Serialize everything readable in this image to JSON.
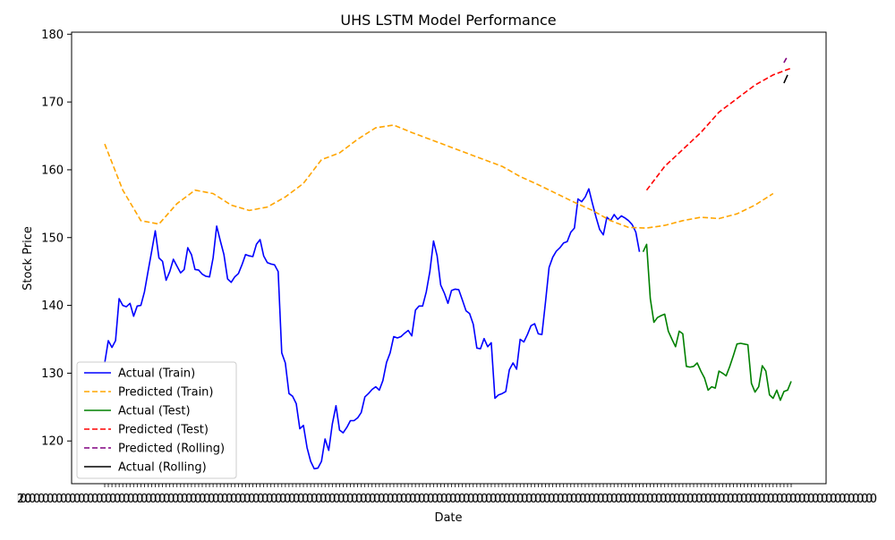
{
  "chart_data": {
    "type": "line",
    "title": "UHS LSTM Model Performance",
    "xlabel": "Date",
    "ylabel": "Stock Price",
    "ylim": [
      113.7,
      180.3
    ],
    "yticks": [
      120,
      130,
      140,
      150,
      160,
      170,
      180
    ],
    "x_tick_labels_note": "overlapping date strings rendered illegibly",
    "x_tick_labels_visible": [
      "20",
      "0"
    ],
    "x_index_range": [
      0,
      190
    ],
    "grid": false,
    "legend_position": "lower-left",
    "series": [
      {
        "name": "Actual (Train)",
        "color": "#0000ff",
        "style": "solid",
        "x": [
          0,
          1,
          2,
          3,
          4,
          5,
          6,
          7,
          8,
          9,
          10,
          11,
          12,
          13,
          14,
          15,
          16,
          17,
          18,
          19,
          20,
          21,
          22,
          23,
          24,
          25,
          26,
          27,
          28,
          29,
          30,
          31,
          32,
          33,
          34,
          35,
          36,
          37,
          38,
          39,
          40,
          41,
          42,
          43,
          44,
          45,
          46,
          47,
          48,
          49,
          50,
          51,
          52,
          53,
          54,
          55,
          56,
          57,
          58,
          59,
          60,
          61,
          62,
          63,
          64,
          65,
          66,
          67,
          68,
          69,
          70,
          71,
          72,
          73,
          74,
          75,
          76,
          77,
          78,
          79,
          80,
          81,
          82,
          83,
          84,
          85,
          86,
          87,
          88,
          89,
          90,
          91,
          92,
          93,
          94,
          95,
          96,
          97,
          98,
          99,
          100,
          101,
          102,
          103,
          104,
          105,
          106,
          107,
          108,
          109,
          110,
          111,
          112,
          113,
          114,
          115,
          116,
          117,
          118,
          119,
          120,
          121,
          122,
          123,
          124,
          125,
          126,
          127,
          128,
          129,
          130,
          131,
          132,
          133,
          134,
          135,
          136,
          137,
          138,
          139,
          140,
          141,
          142,
          143,
          144,
          145,
          146,
          147,
          148
        ],
        "values": [
          131.5,
          134.8,
          133.8,
          134.8,
          141.0,
          140.0,
          139.8,
          140.3,
          138.4,
          139.9,
          140.0,
          142.0,
          145.0,
          148.0,
          151.0,
          147.0,
          146.5,
          143.7,
          145.0,
          146.8,
          145.8,
          144.8,
          145.3,
          148.5,
          147.5,
          145.3,
          145.2,
          144.6,
          144.3,
          144.2,
          147.0,
          151.7,
          149.5,
          147.5,
          143.9,
          143.4,
          144.2,
          144.7,
          146.0,
          147.5,
          147.3,
          147.2,
          149.0,
          149.7,
          147.3,
          146.3,
          146.1,
          146.0,
          145.0,
          133.0,
          131.5,
          127.0,
          126.6,
          125.5,
          121.8,
          122.3,
          119.0,
          117.0,
          115.9,
          116.0,
          117.0,
          120.3,
          118.6,
          122.5,
          125.2,
          121.6,
          121.2,
          122.0,
          123.0,
          123.0,
          123.4,
          124.2,
          126.5,
          127.0,
          127.6,
          128.0,
          127.5,
          128.9,
          131.6,
          133.0,
          135.4,
          135.2,
          135.4,
          135.9,
          136.3,
          135.5,
          139.3,
          139.9,
          139.9,
          142.0,
          145.0,
          149.5,
          147.3,
          143.0,
          141.8,
          140.3,
          142.2,
          142.4,
          142.3,
          140.8,
          139.2,
          138.8,
          137.2,
          133.7,
          133.6,
          135.1,
          133.9,
          134.5,
          126.3,
          126.8,
          127.0,
          127.3,
          130.5,
          131.5,
          130.6,
          135.0,
          134.6,
          135.7,
          137.0,
          137.3,
          135.8,
          135.7,
          140.5,
          145.6,
          147.1,
          148.0,
          148.5,
          149.2,
          149.4,
          150.8,
          151.4,
          155.7,
          155.3,
          156.0,
          157.2,
          155.0,
          153.0,
          151.2,
          150.4,
          153.0,
          152.5,
          153.4,
          152.7,
          153.2,
          152.9,
          152.5,
          151.9,
          150.8,
          147.9
        ]
      },
      {
        "name": "Predicted (Train)",
        "color": "#ffa500",
        "style": "dashed",
        "x": [
          0,
          5,
          10,
          15,
          20,
          25,
          30,
          35,
          40,
          45,
          50,
          55,
          60,
          65,
          70,
          75,
          80,
          85,
          90,
          95,
          100,
          105,
          110,
          115,
          120,
          125,
          130,
          135,
          140,
          145,
          150,
          155,
          160,
          165,
          170,
          175,
          180,
          185
        ],
        "values": [
          163.8,
          157.0,
          152.5,
          152.0,
          155.0,
          157.0,
          156.5,
          154.8,
          154.0,
          154.5,
          156.0,
          158.0,
          161.5,
          162.5,
          164.5,
          166.2,
          166.6,
          165.5,
          164.5,
          163.5,
          162.5,
          161.5,
          160.5,
          159.0,
          157.8,
          156.5,
          155.2,
          154.0,
          152.5,
          151.5,
          151.4,
          151.8,
          152.5,
          153.0,
          152.8,
          153.5,
          154.8,
          156.5
        ]
      },
      {
        "name": "Actual (Test)",
        "color": "#008000",
        "style": "solid",
        "x": [
          149,
          150,
          151,
          152,
          153,
          154,
          155,
          156,
          157,
          158,
          159,
          160,
          161,
          162,
          163,
          164,
          165,
          166,
          167,
          168,
          169,
          170,
          171,
          172,
          173,
          174,
          175,
          176,
          177,
          178,
          179,
          180,
          181,
          182,
          183,
          184,
          185,
          186,
          187,
          188,
          189,
          190
        ],
        "values": [
          147.9,
          149.0,
          141.0,
          137.5,
          138.2,
          138.5,
          138.7,
          136.2,
          135.0,
          133.9,
          136.2,
          135.8,
          131.0,
          130.9,
          131.0,
          131.5,
          130.3,
          129.3,
          127.5,
          128.0,
          127.8,
          130.3,
          130.0,
          129.6,
          131.0,
          132.6,
          134.3,
          134.4,
          134.3,
          134.2,
          128.5,
          127.2,
          128.0,
          131.1,
          130.3,
          126.8,
          126.3,
          127.5,
          126.0,
          127.3,
          127.5,
          128.8
        ]
      },
      {
        "name": "Predicted (Test)",
        "color": "#ff0000",
        "style": "dashed",
        "x": [
          150,
          155,
          160,
          165,
          170,
          175,
          180,
          185,
          190
        ],
        "values": [
          157.0,
          160.5,
          163.0,
          165.5,
          168.5,
          170.5,
          172.5,
          174.0,
          175.0
        ]
      },
      {
        "name": "Predicted (Rolling)",
        "color": "#800080",
        "style": "dashed",
        "x": [
          188,
          189
        ],
        "values": [
          175.8,
          176.8
        ]
      },
      {
        "name": "Actual (Rolling)",
        "color": "#000000",
        "style": "solid",
        "x": [
          188,
          189
        ],
        "values": [
          172.8,
          174.0
        ]
      }
    ]
  }
}
